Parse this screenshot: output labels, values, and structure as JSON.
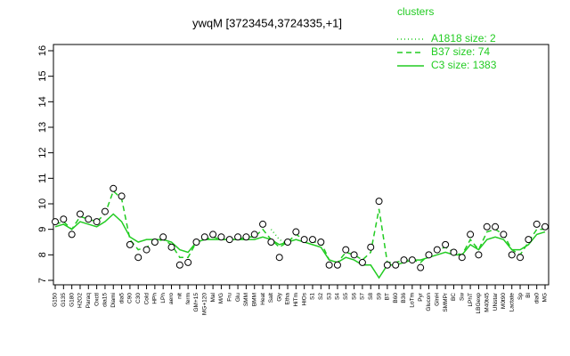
{
  "chart_data": {
    "type": "line",
    "title": "ywqM [3723454,3724335,+1]",
    "legend_title": "clusters",
    "categories": [
      "G150",
      "G135",
      "G180",
      "H2O2",
      "Paraq",
      "Oxctl",
      "dia15",
      "Diami",
      "dia5",
      "C90",
      "C30",
      "Cold",
      "HPh",
      "LPh",
      "aero",
      "nit",
      "ferm",
      "GM+15",
      "MG+120",
      "Mal",
      "M/G",
      "Fru",
      "Glu",
      "SMM",
      "BMM",
      "Heat",
      "Salt",
      "Gly",
      "Etha",
      "HiTm",
      "HiOs",
      "S1",
      "S2",
      "S3",
      "S4",
      "S5",
      "S6",
      "S7",
      "S8",
      "S9",
      "BT",
      "B60",
      "B36",
      "LoTm",
      "Pyr",
      "Glucon",
      "GlnH",
      "SMMPr",
      "BC",
      "Sw",
      "LPhT",
      "LBGexp",
      "M40t45",
      "UNstar",
      "M0t90",
      "Lactate",
      "Sp",
      "Bl",
      "dia0",
      "MG"
    ],
    "points": [
      9.3,
      9.4,
      8.8,
      9.6,
      9.4,
      9.3,
      9.7,
      10.6,
      10.3,
      8.4,
      7.9,
      8.2,
      8.5,
      8.7,
      8.3,
      7.6,
      7.7,
      8.5,
      8.7,
      8.8,
      8.7,
      8.6,
      8.7,
      8.7,
      8.8,
      9.2,
      8.5,
      7.9,
      8.5,
      8.9,
      8.6,
      8.6,
      8.5,
      7.6,
      7.6,
      8.2,
      8.0,
      7.7,
      8.3,
      10.1,
      7.6,
      7.6,
      7.8,
      7.8,
      7.5,
      8.0,
      8.2,
      8.4,
      8.1,
      7.9,
      8.8,
      8.0,
      9.1,
      9.1,
      8.8,
      8.0,
      7.9,
      8.6,
      9.2,
      9.1
    ],
    "series": [
      {
        "name": "A1818 size: 2",
        "color": "#22cc22",
        "dash": "1,3",
        "values": [
          null,
          null,
          null,
          null,
          null,
          null,
          null,
          null,
          null,
          null,
          null,
          null,
          null,
          null,
          null,
          null,
          null,
          null,
          null,
          null,
          null,
          null,
          null,
          null,
          null,
          null,
          9.0,
          8.6,
          8.4,
          null,
          null,
          null,
          null,
          null,
          null,
          null,
          null,
          null,
          null,
          null,
          null,
          null,
          null,
          null,
          null,
          null,
          null,
          null,
          null,
          null,
          null,
          null,
          null,
          null,
          null,
          null,
          null,
          null,
          null,
          null
        ]
      },
      {
        "name": "B37 size: 74",
        "color": "#22cc22",
        "dash": "6,4",
        "values": [
          9.2,
          9.3,
          9.0,
          9.5,
          9.4,
          9.3,
          9.6,
          10.5,
          10.2,
          8.6,
          8.2,
          8.3,
          8.5,
          8.6,
          8.4,
          7.9,
          7.9,
          8.5,
          8.6,
          8.7,
          8.6,
          8.6,
          8.6,
          8.7,
          8.7,
          9.0,
          8.6,
          8.3,
          8.5,
          8.8,
          8.6,
          8.5,
          8.5,
          7.8,
          7.7,
          8.1,
          8.0,
          7.8,
          8.1,
          9.8,
          7.7,
          7.7,
          7.8,
          7.8,
          7.7,
          8.0,
          8.2,
          8.3,
          8.1,
          8.0,
          8.6,
          8.2,
          8.9,
          9.0,
          8.8,
          8.2,
          8.0,
          8.5,
          9.0,
          9.0
        ]
      },
      {
        "name": "C3 size: 1383",
        "color": "#22cc22",
        "dash": "",
        "values": [
          9.1,
          9.2,
          9.0,
          9.3,
          9.2,
          9.1,
          9.3,
          9.6,
          9.3,
          8.7,
          8.5,
          8.6,
          8.6,
          8.6,
          8.5,
          8.2,
          8.1,
          8.5,
          8.6,
          8.6,
          8.6,
          8.6,
          8.6,
          8.6,
          8.6,
          8.7,
          8.6,
          8.4,
          8.5,
          8.6,
          8.5,
          8.4,
          8.3,
          7.8,
          7.7,
          7.9,
          7.8,
          7.6,
          7.6,
          7.1,
          7.6,
          7.6,
          7.7,
          7.8,
          7.8,
          7.9,
          8.0,
          8.1,
          8.0,
          8.0,
          8.4,
          8.2,
          8.6,
          8.7,
          8.6,
          8.2,
          8.2,
          8.4,
          8.8,
          8.9
        ]
      }
    ],
    "ylim": [
      7,
      16
    ],
    "yticks": [
      7,
      8,
      9,
      10,
      11,
      12,
      13,
      14,
      15,
      16
    ]
  }
}
